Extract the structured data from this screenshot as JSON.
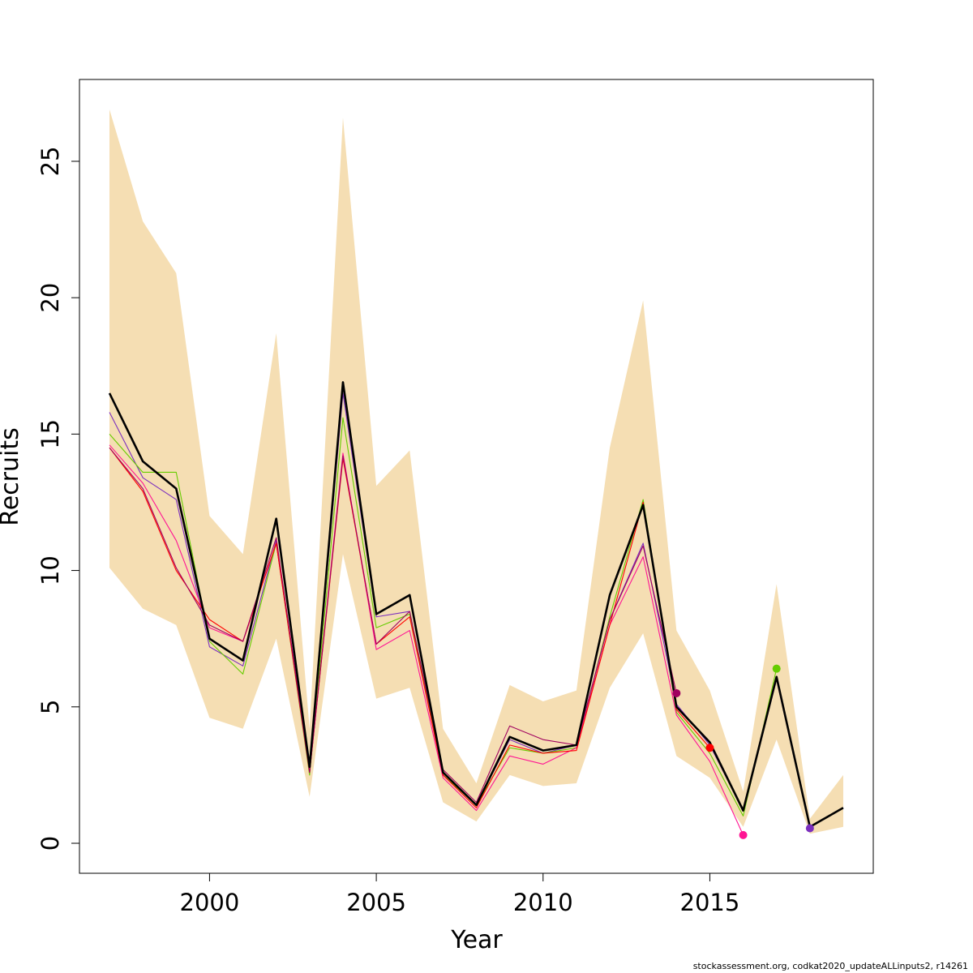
{
  "chart_data": {
    "type": "line",
    "xlabel": "Year",
    "ylabel": "Recruits",
    "xlim": [
      1996.1,
      2019.9
    ],
    "ylim": [
      -1.1,
      28.0
    ],
    "x_ticks": [
      2000,
      2005,
      2010,
      2015
    ],
    "y_ticks": [
      0,
      5,
      10,
      15,
      20,
      25
    ],
    "grid": false,
    "legend": "none",
    "band": {
      "color": "#F5DEB3",
      "x": [
        1997,
        1998,
        1999,
        2000,
        2001,
        2002,
        2003,
        2004,
        2005,
        2006,
        2007,
        2008,
        2009,
        2010,
        2011,
        2012,
        2013,
        2014,
        2015,
        2016,
        2017,
        2018,
        2019
      ],
      "lower": [
        10.1,
        8.6,
        8.0,
        4.6,
        4.2,
        7.5,
        1.7,
        10.6,
        5.3,
        5.7,
        1.5,
        0.8,
        2.5,
        2.1,
        2.2,
        5.7,
        7.7,
        3.2,
        2.4,
        0.6,
        3.8,
        0.35,
        0.6
      ],
      "upper": [
        26.9,
        22.8,
        20.9,
        12.0,
        10.6,
        18.7,
        4.2,
        26.6,
        13.1,
        14.4,
        4.2,
        2.2,
        5.8,
        5.2,
        5.6,
        14.5,
        19.9,
        7.8,
        5.6,
        1.9,
        9.5,
        0.9,
        2.5
      ]
    },
    "series": [
      {
        "color": "#000000",
        "x": [
          1997,
          1998,
          1999,
          2000,
          2001,
          2002,
          2003,
          2004,
          2005,
          2006,
          2007,
          2008,
          2009,
          2010,
          2011,
          2012,
          2013,
          2014,
          2015,
          2016,
          2017,
          2018,
          2019
        ],
        "values": [
          16.5,
          14.0,
          13.0,
          7.5,
          6.7,
          11.9,
          2.8,
          16.9,
          8.4,
          9.1,
          2.6,
          1.4,
          3.9,
          3.4,
          3.6,
          9.1,
          12.4,
          5.0,
          3.7,
          1.2,
          6.1,
          0.6,
          1.3
        ]
      },
      {
        "color": "#7B2FBE",
        "x": [
          1997,
          1998,
          1999,
          2000,
          2001,
          2002,
          2003,
          2004,
          2005,
          2006,
          2007,
          2008,
          2009,
          2010,
          2011,
          2012,
          2013,
          2014,
          2015,
          2016,
          2017,
          2018
        ],
        "values": [
          15.8,
          13.4,
          12.6,
          7.2,
          6.5,
          11.1,
          2.7,
          16.5,
          8.3,
          8.5,
          2.5,
          1.4,
          3.8,
          3.3,
          3.6,
          8.2,
          11.0,
          5.1,
          3.6,
          1.2,
          6.0,
          0.55
        ],
        "endpoint": {
          "x": 2018,
          "y": 0.55
        }
      },
      {
        "color": "#66CC00",
        "x": [
          1997,
          1998,
          1999,
          2000,
          2001,
          2002,
          2003,
          2004,
          2005,
          2006,
          2007,
          2008,
          2009,
          2010,
          2011,
          2012,
          2013,
          2014,
          2015,
          2016,
          2017
        ],
        "values": [
          15.0,
          13.6,
          13.6,
          7.4,
          6.2,
          11.0,
          2.5,
          15.6,
          7.9,
          8.4,
          2.5,
          1.4,
          3.5,
          3.3,
          3.5,
          8.3,
          12.6,
          4.8,
          3.3,
          1.0,
          6.4
        ],
        "endpoint": {
          "x": 2017,
          "y": 6.4
        }
      },
      {
        "color": "#FF1493",
        "x": [
          1997,
          1998,
          1999,
          2000,
          2001,
          2002,
          2003,
          2004,
          2005,
          2006,
          2007,
          2008,
          2009,
          2010,
          2011,
          2012,
          2013,
          2014,
          2015,
          2016
        ],
        "values": [
          14.6,
          13.2,
          11.1,
          7.9,
          7.4,
          11.0,
          2.6,
          14.3,
          7.1,
          7.8,
          2.4,
          1.2,
          3.2,
          2.9,
          3.5,
          8.0,
          10.5,
          4.7,
          3.0,
          0.3
        ],
        "endpoint": {
          "x": 2016,
          "y": 0.3
        }
      },
      {
        "color": "#FF0000",
        "x": [
          1997,
          1998,
          1999,
          2000,
          2001,
          2002,
          2003,
          2004,
          2005,
          2006,
          2007,
          2008,
          2009,
          2010,
          2011,
          2012,
          2013,
          2014,
          2015
        ],
        "values": [
          14.5,
          12.9,
          10.0,
          8.2,
          7.4,
          11.0,
          2.6,
          14.1,
          7.3,
          8.3,
          2.5,
          1.3,
          3.6,
          3.3,
          3.4,
          8.0,
          12.5,
          4.9,
          3.5
        ],
        "endpoint": {
          "x": 2015,
          "y": 3.5
        }
      },
      {
        "color": "#A0005F",
        "x": [
          1997,
          1998,
          1999,
          2000,
          2001,
          2002,
          2003,
          2004,
          2005,
          2006,
          2007,
          2008,
          2009,
          2010,
          2011,
          2012,
          2013,
          2014
        ],
        "values": [
          14.5,
          13.0,
          10.1,
          8.0,
          7.4,
          11.2,
          2.6,
          14.2,
          7.3,
          8.5,
          2.7,
          1.5,
          4.3,
          3.8,
          3.6,
          8.2,
          10.9,
          5.5
        ],
        "endpoint": {
          "x": 2014,
          "y": 5.5
        }
      }
    ]
  },
  "footer_text": "stockassessment.org, codkat2020_updateALLinputs2, r14261"
}
